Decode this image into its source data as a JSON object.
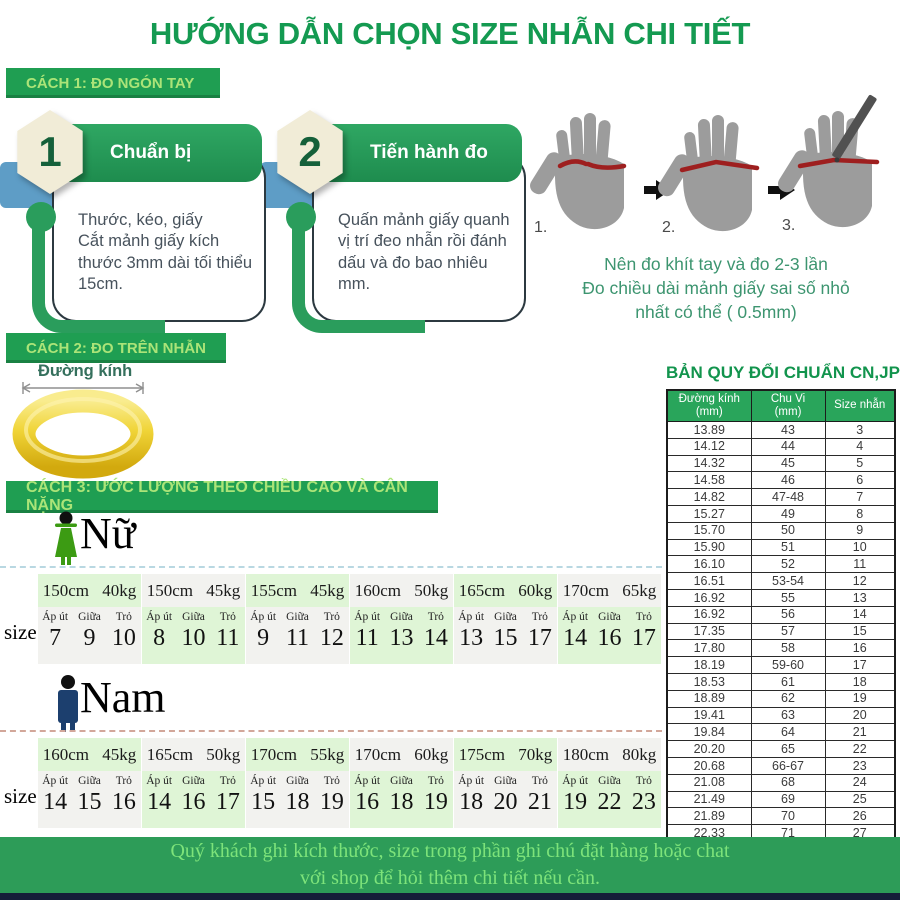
{
  "title": "HƯỚNG DẪN CHỌN SIZE NHẪN CHI TIẾT",
  "colors": {
    "primary_green": "#1f9e52",
    "banner_text_green": "#abe478",
    "accent_blue": "#5e9dc6",
    "table_header_green": "#29a55b",
    "ring_gold": "#e8c11c",
    "note_green": "#3d9570"
  },
  "method1": {
    "banner": "CÁCH 1: ĐO NGÓN TAY",
    "steps": [
      {
        "number": "1",
        "heading": "Chuẩn bị",
        "body": "Thước, kéo, giấy\nCắt mảnh giấy kích thước 3mm dài tối thiểu 15cm."
      },
      {
        "number": "2",
        "heading": "Tiến hành đo",
        "body": "Quấn mảnh giấy quanh vị trí đeo nhẫn rồi đánh dấu và đo bao nhiêu mm."
      }
    ],
    "hand_labels": [
      "1.",
      "2.",
      "3."
    ],
    "note": "Nên đo khít tay và đo 2-3 lần\nĐo chiều dài mảnh giấy sai số nhỏ\nnhất có thể ( 0.5mm)"
  },
  "method2": {
    "banner": "CÁCH 2: ĐO TRÊN NHẪN",
    "ring_label": "Đường kính"
  },
  "conversion_table": {
    "title": "BẢN QUY ĐỔI CHUẨN CN,JP",
    "headers": [
      "Đường kính\n(mm)",
      "Chu Vi\n(mm)",
      "Size nhẫn"
    ],
    "rows": [
      [
        "13.89",
        "43",
        "3"
      ],
      [
        "14.12",
        "44",
        "4"
      ],
      [
        "14.32",
        "45",
        "5"
      ],
      [
        "14.58",
        "46",
        "6"
      ],
      [
        "14.82",
        "47-48",
        "7"
      ],
      [
        "15.27",
        "49",
        "8"
      ],
      [
        "15.70",
        "50",
        "9"
      ],
      [
        "15.90",
        "51",
        "10"
      ],
      [
        "16.10",
        "52",
        "11"
      ],
      [
        "16.51",
        "53-54",
        "12"
      ],
      [
        "16.92",
        "55",
        "13"
      ],
      [
        "16.92",
        "56",
        "14"
      ],
      [
        "17.35",
        "57",
        "15"
      ],
      [
        "17.80",
        "58",
        "16"
      ],
      [
        "18.19",
        "59-60",
        "17"
      ],
      [
        "18.53",
        "61",
        "18"
      ],
      [
        "18.89",
        "62",
        "19"
      ],
      [
        "19.41",
        "63",
        "20"
      ],
      [
        "19.84",
        "64",
        "21"
      ],
      [
        "20.20",
        "65",
        "22"
      ],
      [
        "20.68",
        "66-67",
        "23"
      ],
      [
        "21.08",
        "68",
        "24"
      ],
      [
        "21.49",
        "69",
        "25"
      ],
      [
        "21.89",
        "70",
        "26"
      ],
      [
        "22.33",
        "71",
        "27"
      ]
    ]
  },
  "method3": {
    "banner": "CÁCH 3: ƯỚC LƯỢNG THEO CHIỀU CAO VÀ CÂN NẶNG",
    "size_word": "size",
    "finger_headers": [
      "Áp út",
      "Giữa",
      "Trỏ"
    ],
    "female": {
      "label": "Nữ",
      "columns": [
        {
          "label": "150cm 40kg",
          "sizes": [
            "7",
            "9",
            "10"
          ]
        },
        {
          "label": "150cm 45kg",
          "sizes": [
            "8",
            "10",
            "11"
          ]
        },
        {
          "label": "155cm 45kg",
          "sizes": [
            "9",
            "11",
            "12"
          ]
        },
        {
          "label": "160cm 50kg",
          "sizes": [
            "11",
            "13",
            "14"
          ]
        },
        {
          "label": "165cm 60kg",
          "sizes": [
            "13",
            "15",
            "17"
          ]
        },
        {
          "label": "170cm 65kg",
          "sizes": [
            "14",
            "16",
            "17"
          ]
        }
      ]
    },
    "male": {
      "label": "Nam",
      "columns": [
        {
          "label": "160cm 45kg",
          "sizes": [
            "14",
            "15",
            "16"
          ]
        },
        {
          "label": "165cm 50kg",
          "sizes": [
            "14",
            "16",
            "17"
          ]
        },
        {
          "label": "170cm 55kg",
          "sizes": [
            "15",
            "18",
            "19"
          ]
        },
        {
          "label": "170cm 60kg",
          "sizes": [
            "16",
            "18",
            "19"
          ]
        },
        {
          "label": "175cm 70kg",
          "sizes": [
            "18",
            "20",
            "21"
          ]
        },
        {
          "label": "180cm 80kg",
          "sizes": [
            "19",
            "22",
            "23"
          ]
        }
      ]
    }
  },
  "footer": "Quý khách ghi kích thước, size trong phần ghi chú đặt hàng hoặc chat\nvới shop để hỏi thêm chi tiết nếu cần."
}
